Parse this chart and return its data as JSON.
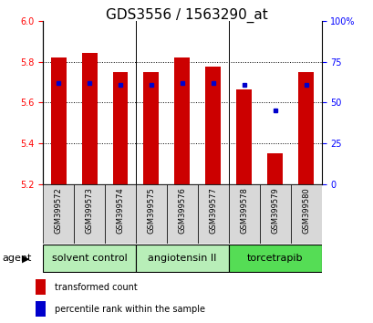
{
  "title": "GDS3556 / 1563290_at",
  "samples": [
    "GSM399572",
    "GSM399573",
    "GSM399574",
    "GSM399575",
    "GSM399576",
    "GSM399577",
    "GSM399578",
    "GSM399579",
    "GSM399580"
  ],
  "transformed_counts": [
    5.82,
    5.845,
    5.75,
    5.75,
    5.82,
    5.775,
    5.665,
    5.35,
    5.75
  ],
  "percentile_ranks": [
    62,
    62,
    61,
    61,
    62,
    62,
    61,
    45,
    61
  ],
  "ymin": 5.2,
  "ymax": 6.0,
  "yticks": [
    5.2,
    5.4,
    5.6,
    5.8,
    6.0
  ],
  "right_yticks": [
    0,
    25,
    50,
    75,
    100
  ],
  "right_yticklabels": [
    "0",
    "25",
    "50",
    "75",
    "100%"
  ],
  "groups": [
    {
      "label": "solvent control",
      "start": 0,
      "end": 2,
      "color": "#b8eeb8"
    },
    {
      "label": "angiotensin II",
      "start": 3,
      "end": 5,
      "color": "#b8eeb8"
    },
    {
      "label": "torcetrapib",
      "start": 6,
      "end": 8,
      "color": "#55dd55"
    }
  ],
  "bar_color": "#cc0000",
  "dot_color": "#0000cc",
  "bar_width": 0.5,
  "agent_label": "agent",
  "legend_items": [
    {
      "label": "transformed count",
      "color": "#cc0000"
    },
    {
      "label": "percentile rank within the sample",
      "color": "#0000cc"
    }
  ],
  "title_fontsize": 11,
  "tick_fontsize": 7,
  "group_label_fontsize": 8,
  "sample_fontsize": 6,
  "agent_fontsize": 8,
  "legend_fontsize": 7
}
